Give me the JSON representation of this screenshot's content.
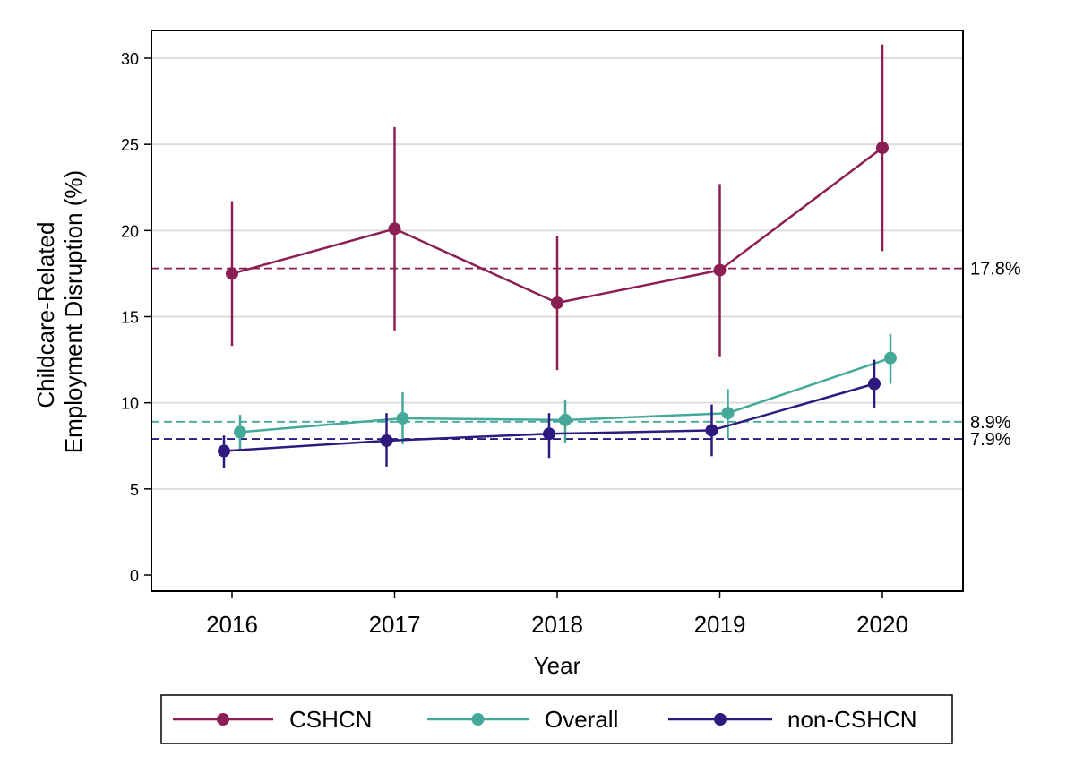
{
  "chart_data": {
    "type": "line",
    "x": [
      2016,
      2017,
      2018,
      2019,
      2020
    ],
    "xlabel": "Year",
    "ylabel_lines": [
      "Childcare-Related",
      "Employment Disruption (%)"
    ],
    "ylim": [
      0,
      30
    ],
    "yticks": [
      0,
      5,
      10,
      15,
      20,
      25,
      30
    ],
    "grid": "horizontal",
    "legend_position": "bottom",
    "series": [
      {
        "name": "CSHCN",
        "color": "#8B1E52",
        "values": [
          17.5,
          20.1,
          15.8,
          17.7,
          24.8
        ],
        "ci_low": [
          13.3,
          14.2,
          11.9,
          12.7,
          18.8
        ],
        "ci_high": [
          21.7,
          26.0,
          19.7,
          22.7,
          30.8
        ],
        "reference": 17.8,
        "reference_label": "17.8%",
        "offset": 0
      },
      {
        "name": "Overall",
        "color": "#45A99A",
        "values": [
          8.3,
          9.1,
          9.0,
          9.4,
          12.6
        ],
        "ci_low": [
          7.3,
          7.6,
          7.7,
          7.9,
          11.1
        ],
        "ci_high": [
          9.3,
          10.6,
          10.2,
          10.8,
          14.0
        ],
        "reference": 8.9,
        "reference_label": "8.9%",
        "offset": 1
      },
      {
        "name": "non-CSHCN",
        "color": "#2E1A7E",
        "values": [
          7.2,
          7.8,
          8.2,
          8.4,
          11.1
        ],
        "ci_low": [
          6.2,
          6.3,
          6.8,
          6.9,
          9.7
        ],
        "ci_high": [
          8.1,
          9.4,
          9.4,
          9.9,
          12.5
        ],
        "reference": 7.9,
        "reference_label": "7.9%",
        "offset": -1
      }
    ]
  }
}
